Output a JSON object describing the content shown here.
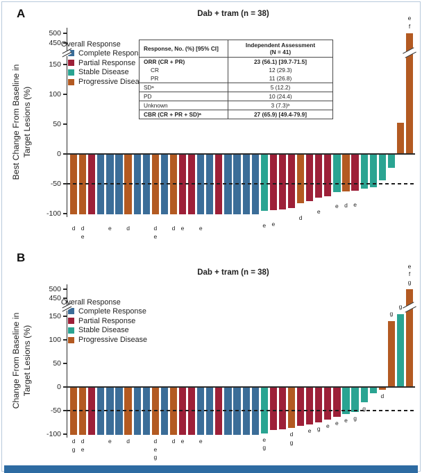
{
  "panels": {
    "a": "A",
    "b": "B"
  },
  "frame": {
    "accent_bar_color": "#2D6BA2",
    "border_color": "#B7C9DB",
    "background": "#FFFFFF"
  },
  "response_colors": {
    "CR": "#3B6D98",
    "PR": "#9D2038",
    "SD": "#2AA492",
    "PD": "#B35A22"
  },
  "legend": {
    "title": "Overall Response",
    "items": [
      {
        "key": "CR",
        "label": "Complete Response"
      },
      {
        "key": "PR",
        "label": "Partial Response"
      },
      {
        "key": "SD",
        "label": "Stable Disease"
      },
      {
        "key": "PD",
        "label": "Progressive Disease"
      }
    ]
  },
  "table": {
    "col1_header": "Response, No. (%) [95% CI]",
    "col2_header_line1": "Independent Assessment",
    "col2_header_line2": "(N = 41)",
    "rows": [
      {
        "label": "ORR (CR + PR)",
        "value": "23 (56.1) [39.7-71.5]",
        "bold": true,
        "indent": false,
        "rule_below": false
      },
      {
        "label": "CR",
        "value": "12 (29.3)",
        "bold": false,
        "indent": true,
        "rule_below": false
      },
      {
        "label": "PR",
        "value": "11 (26.8)",
        "bold": false,
        "indent": true,
        "rule_below": true
      },
      {
        "label": "SDᵃ",
        "value": "5 (12.2)",
        "bold": false,
        "indent": false,
        "rule_below": true
      },
      {
        "label": "PD",
        "value": "10 (24.4)",
        "bold": false,
        "indent": false,
        "rule_below": true
      },
      {
        "label": "Unknown",
        "value": "3 (7.3)ᵇ",
        "bold": false,
        "indent": false,
        "rule_below": true
      },
      {
        "label": "CBR (CR + PR + SD)ᵃ",
        "value": "27 (65.9) [49.4-79.9]",
        "bold": true,
        "indent": false,
        "rule_below": false
      }
    ]
  },
  "chart_data": [
    {
      "type": "bar",
      "subtype": "waterfall",
      "panel": "A",
      "title": "Dab + tram (n = 38)",
      "n": 38,
      "ylabel": [
        "Best Change From Baseline in",
        "Target Lesions (%)"
      ],
      "yticks": [
        500,
        450,
        150,
        100,
        50,
        0,
        -50,
        -100
      ],
      "axis_break_between": [
        150,
        450
      ],
      "reference_line": -50,
      "grid": false,
      "legend_position": "upper-left",
      "bars": [
        {
          "value": -100,
          "response": "PD",
          "notes": [
            "d"
          ]
        },
        {
          "value": -100,
          "response": "PD",
          "notes": [
            "d",
            "e"
          ]
        },
        {
          "value": -100,
          "response": "PR",
          "notes": []
        },
        {
          "value": -100,
          "response": "CR",
          "notes": []
        },
        {
          "value": -100,
          "response": "CR",
          "notes": [
            "e"
          ]
        },
        {
          "value": -100,
          "response": "CR",
          "notes": []
        },
        {
          "value": -100,
          "response": "PD",
          "notes": [
            "d"
          ]
        },
        {
          "value": -100,
          "response": "CR",
          "notes": []
        },
        {
          "value": -100,
          "response": "CR",
          "notes": []
        },
        {
          "value": -100,
          "response": "PD",
          "notes": [
            "d",
            "e"
          ]
        },
        {
          "value": -100,
          "response": "CR",
          "notes": []
        },
        {
          "value": -100,
          "response": "PD",
          "notes": [
            "d"
          ]
        },
        {
          "value": -100,
          "response": "PR",
          "notes": [
            "e"
          ]
        },
        {
          "value": -100,
          "response": "PR",
          "notes": []
        },
        {
          "value": -100,
          "response": "CR",
          "notes": [
            "e"
          ]
        },
        {
          "value": -100,
          "response": "CR",
          "notes": []
        },
        {
          "value": -100,
          "response": "PR",
          "notes": []
        },
        {
          "value": -100,
          "response": "CR",
          "notes": []
        },
        {
          "value": -100,
          "response": "CR",
          "notes": []
        },
        {
          "value": -100,
          "response": "CR",
          "notes": []
        },
        {
          "value": -100,
          "response": "CR",
          "notes": []
        },
        {
          "value": -95,
          "response": "SD",
          "notes": [
            "e"
          ]
        },
        {
          "value": -93,
          "response": "PR",
          "notes": [
            "e"
          ]
        },
        {
          "value": -92,
          "response": "PR",
          "notes": []
        },
        {
          "value": -90,
          "response": "PR",
          "notes": []
        },
        {
          "value": -82,
          "response": "PD",
          "notes": [
            "d"
          ]
        },
        {
          "value": -78,
          "response": "PR",
          "notes": []
        },
        {
          "value": -72,
          "response": "PR",
          "notes": [
            "e"
          ]
        },
        {
          "value": -70,
          "response": "PR",
          "notes": []
        },
        {
          "value": -63,
          "response": "SD",
          "notes": [
            "e"
          ]
        },
        {
          "value": -62,
          "response": "PD",
          "notes": [
            "d"
          ]
        },
        {
          "value": -61,
          "response": "PR",
          "notes": [
            "e"
          ]
        },
        {
          "value": -57,
          "response": "SD",
          "notes": []
        },
        {
          "value": -55,
          "response": "SD",
          "notes": []
        },
        {
          "value": -43,
          "response": "SD",
          "notes": []
        },
        {
          "value": -23,
          "response": "SD",
          "notes": []
        },
        {
          "value": 52,
          "response": "PD",
          "notes": []
        },
        {
          "value": 500,
          "response": "PD",
          "notes": [
            "e",
            "f"
          ],
          "axis_break": true
        }
      ]
    },
    {
      "type": "bar",
      "subtype": "waterfall",
      "panel": "B",
      "title": "Dab + tram (n = 38)",
      "n": 38,
      "ylabel": [
        "Change From Baseline in",
        "Target Lesions (%)"
      ],
      "yticks": [
        500,
        450,
        150,
        100,
        50,
        0,
        -50,
        -100
      ],
      "axis_break_between": [
        150,
        450
      ],
      "reference_line": -50,
      "grid": false,
      "legend_position": "upper-left",
      "bars": [
        {
          "value": -100,
          "response": "PD",
          "notes": [
            "d",
            "g"
          ]
        },
        {
          "value": -100,
          "response": "PD",
          "notes": [
            "d",
            "e"
          ]
        },
        {
          "value": -100,
          "response": "PR",
          "notes": []
        },
        {
          "value": -100,
          "response": "CR",
          "notes": []
        },
        {
          "value": -100,
          "response": "CR",
          "notes": [
            "e"
          ]
        },
        {
          "value": -100,
          "response": "CR",
          "notes": []
        },
        {
          "value": -100,
          "response": "PD",
          "notes": [
            "d"
          ]
        },
        {
          "value": -100,
          "response": "CR",
          "notes": []
        },
        {
          "value": -100,
          "response": "CR",
          "notes": []
        },
        {
          "value": -100,
          "response": "PD",
          "notes": [
            "d",
            "e",
            "g"
          ]
        },
        {
          "value": -100,
          "response": "CR",
          "notes": []
        },
        {
          "value": -100,
          "response": "PD",
          "notes": [
            "d"
          ]
        },
        {
          "value": -100,
          "response": "PR",
          "notes": [
            "e"
          ]
        },
        {
          "value": -100,
          "response": "PR",
          "notes": []
        },
        {
          "value": -100,
          "response": "CR",
          "notes": [
            "e"
          ]
        },
        {
          "value": -100,
          "response": "CR",
          "notes": []
        },
        {
          "value": -100,
          "response": "PR",
          "notes": []
        },
        {
          "value": -100,
          "response": "CR",
          "notes": []
        },
        {
          "value": -100,
          "response": "CR",
          "notes": []
        },
        {
          "value": -100,
          "response": "CR",
          "notes": []
        },
        {
          "value": -100,
          "response": "CR",
          "notes": []
        },
        {
          "value": -97,
          "response": "SD",
          "notes": [
            "e",
            "g"
          ]
        },
        {
          "value": -90,
          "response": "PR",
          "notes": []
        },
        {
          "value": -88,
          "response": "PR",
          "notes": []
        },
        {
          "value": -86,
          "response": "PD",
          "notes": [
            "d",
            "g"
          ]
        },
        {
          "value": -82,
          "response": "PR",
          "notes": []
        },
        {
          "value": -78,
          "response": "PR",
          "notes": [
            "e"
          ]
        },
        {
          "value": -74,
          "response": "PR",
          "notes": [
            "g"
          ]
        },
        {
          "value": -68,
          "response": "PR",
          "notes": [
            "e"
          ]
        },
        {
          "value": -62,
          "response": "PR",
          "notes": [
            "e"
          ]
        },
        {
          "value": -56,
          "response": "SD",
          "notes": [
            "e"
          ]
        },
        {
          "value": -52,
          "response": "SD",
          "notes": [
            "g"
          ]
        },
        {
          "value": -31,
          "response": "SD",
          "notes": [
            "g"
          ]
        },
        {
          "value": -12,
          "response": "SD",
          "notes": []
        },
        {
          "value": -5,
          "response": "PD",
          "notes": [
            "d"
          ]
        },
        {
          "value": 140,
          "response": "PD",
          "notes": [
            "g"
          ]
        },
        {
          "value": 155,
          "response": "SD",
          "notes": [
            "g"
          ]
        },
        {
          "value": 500,
          "response": "PD",
          "notes": [
            "e",
            "f",
            "g"
          ],
          "axis_break": true
        }
      ]
    }
  ]
}
